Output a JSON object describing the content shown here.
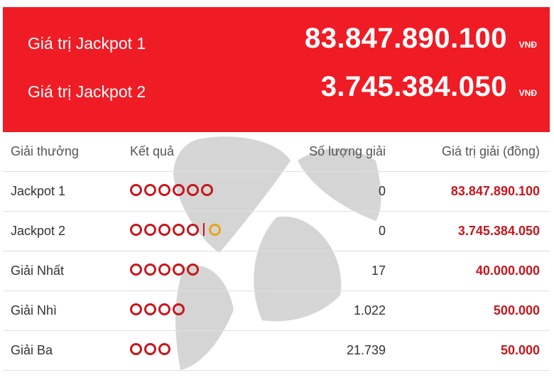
{
  "jackpots": [
    {
      "label": "Giá trị Jackpot 1",
      "amount": "83.847.890.100",
      "unit": "VNĐ"
    },
    {
      "label": "Giá trị Jackpot 2",
      "amount": "3.745.384.050",
      "unit": "VNĐ"
    }
  ],
  "table": {
    "headers": {
      "prize": "Giải thưởng",
      "result": "Kết quả",
      "count": "Số lượng giải",
      "value": "Giá trị giải (đồng)"
    },
    "rows": [
      {
        "prize": "Jackpot 1",
        "balls": 6,
        "bonus_balls": 0,
        "count": "0",
        "value": "83.847.890.100"
      },
      {
        "prize": "Jackpot 2",
        "balls": 5,
        "bonus_balls": 1,
        "count": "0",
        "value": "3.745.384.050"
      },
      {
        "prize": "Giải Nhất",
        "balls": 5,
        "bonus_balls": 0,
        "count": "17",
        "value": "40.000.000"
      },
      {
        "prize": "Giải Nhì",
        "balls": 4,
        "bonus_balls": 0,
        "count": "1.022",
        "value": "500.000"
      },
      {
        "prize": "Giải Ba",
        "balls": 3,
        "bonus_balls": 0,
        "count": "21.739",
        "value": "50.000"
      }
    ]
  },
  "colors": {
    "panel_red": "#ef1c25",
    "ball_red": "#c8161d",
    "ball_gold": "#e8a317"
  },
  "icons": {
    "ball": "result-ball-icon",
    "watermark": "star-watermark-icon"
  }
}
